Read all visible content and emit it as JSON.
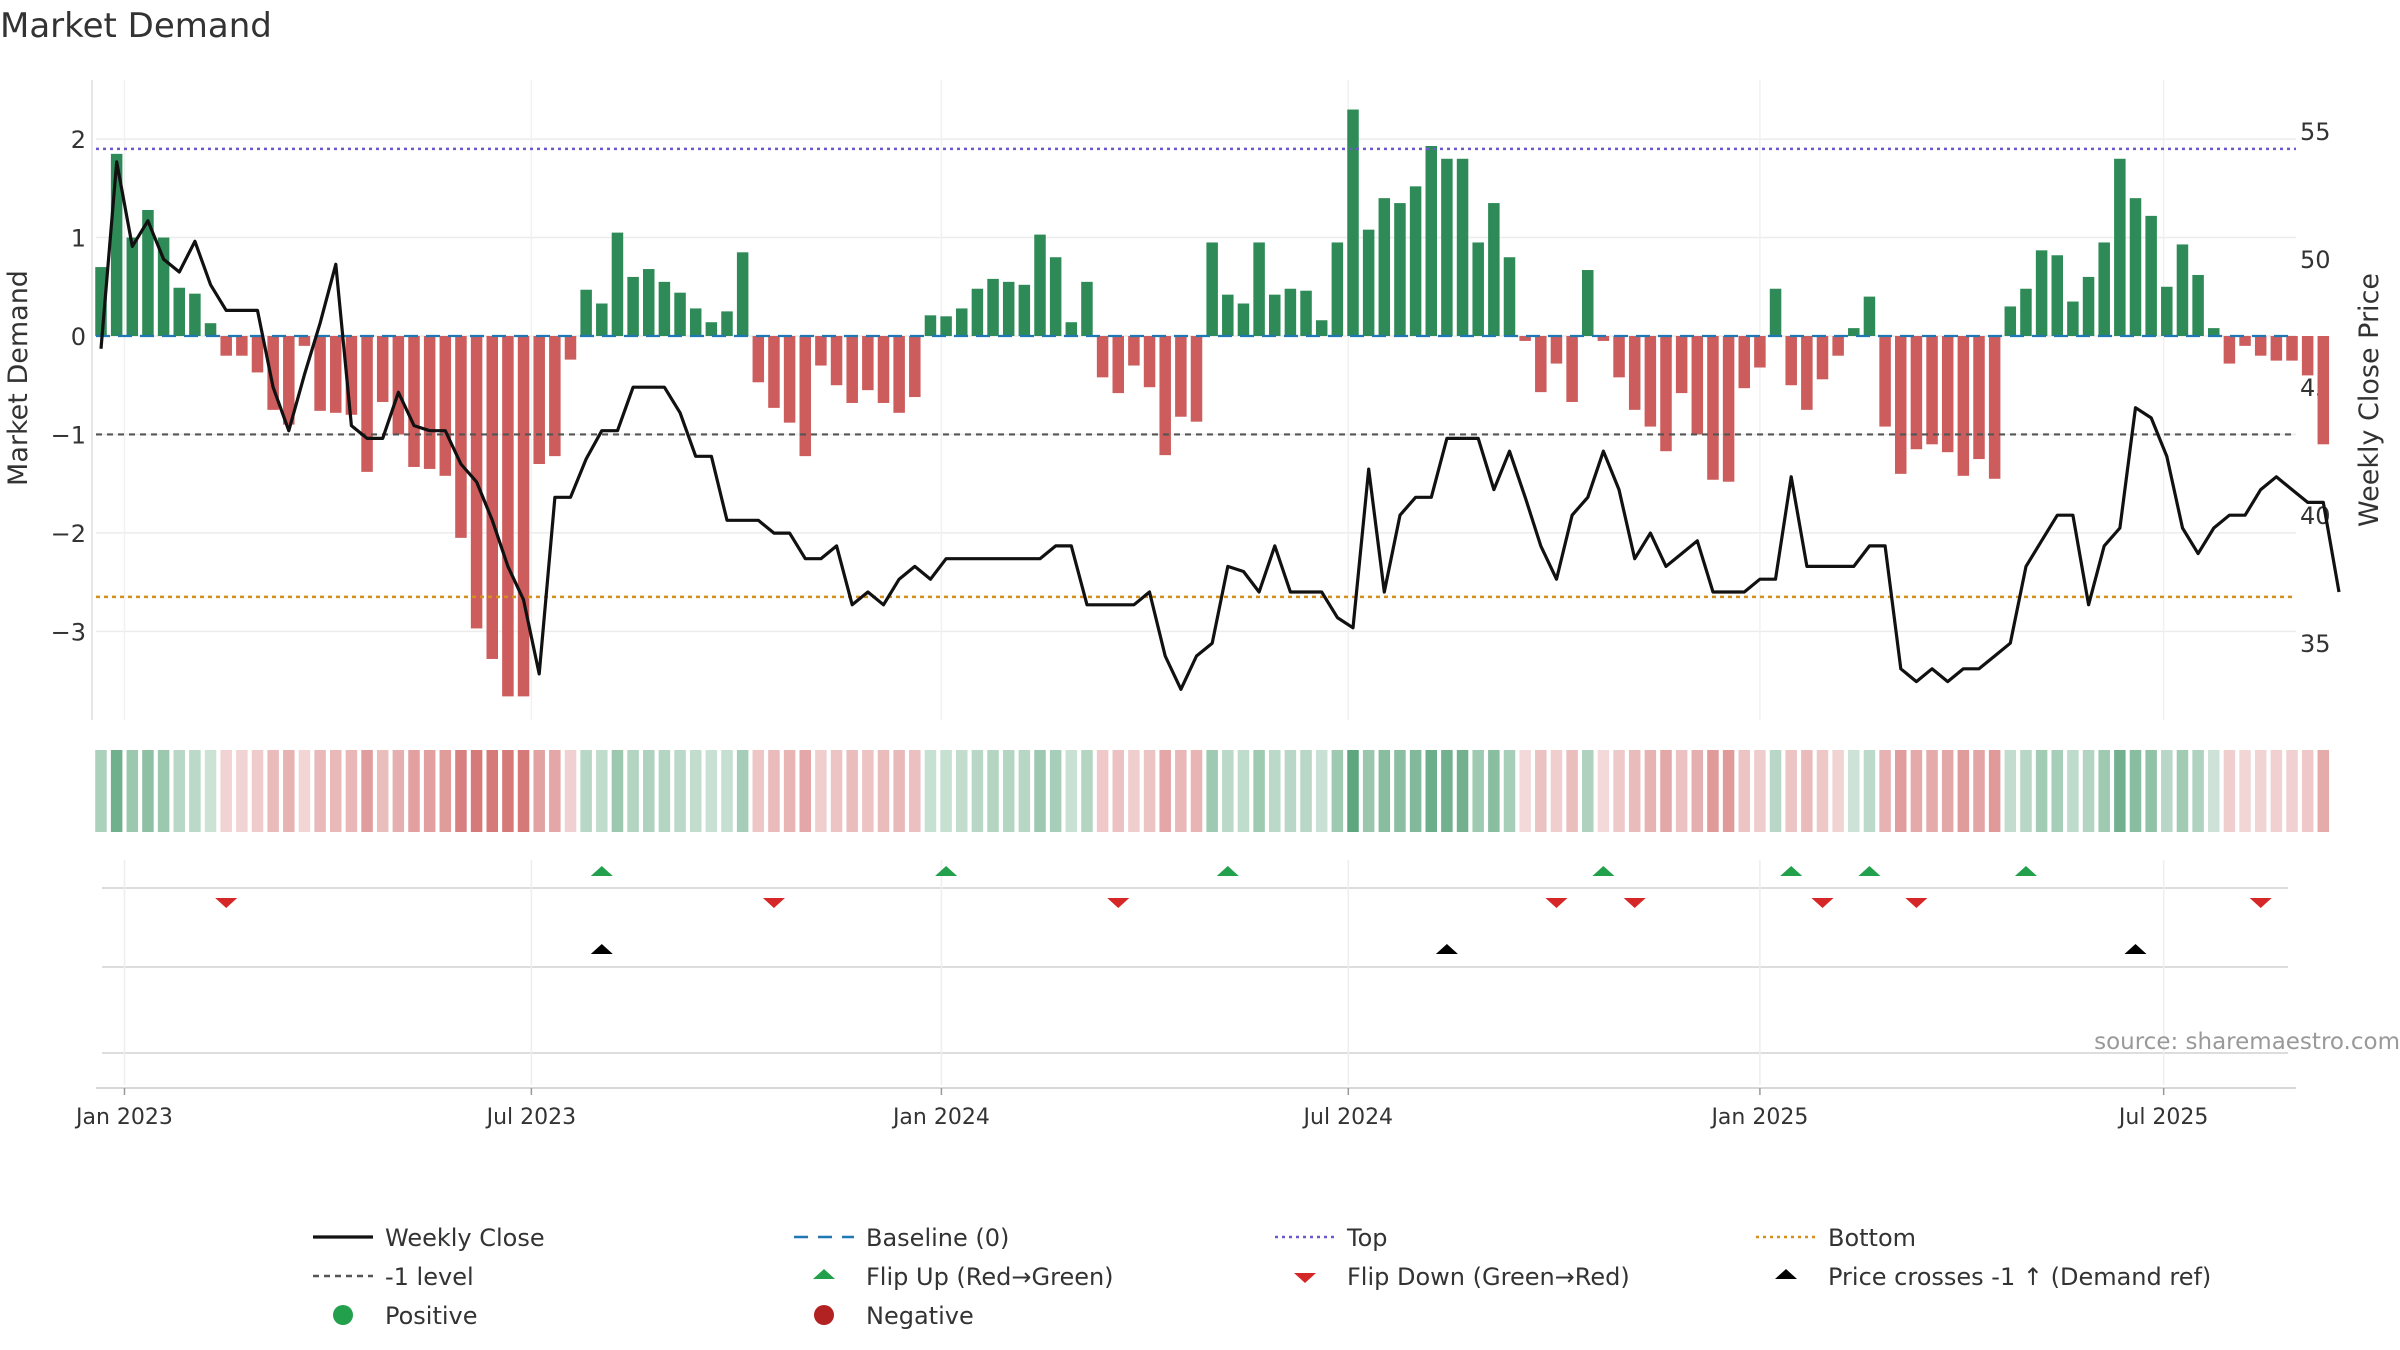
{
  "chart_data": {
    "type": "bar",
    "title": "Market Demand",
    "ylabel_left": "Market Demand",
    "ylabel_right": "Weekly Close Price",
    "ylim_left": [
      -3.9,
      2.6
    ],
    "ylim_right": [
      32,
      57
    ],
    "yticks_left": [
      -3,
      -2,
      -1,
      0,
      1,
      2
    ],
    "yticks_left_labels": [
      "−3",
      "−2",
      "−1",
      "0",
      "1",
      "2"
    ],
    "yticks_right": [
      35,
      40,
      45,
      50,
      55
    ],
    "yticks_right_labels": [
      "35",
      "40",
      "45",
      "50",
      "55"
    ],
    "xticks": [
      {
        "label": "Jan 2023",
        "week": 1.5
      },
      {
        "label": "Jul 2023",
        "week": 27.5
      },
      {
        "label": "Jan 2024",
        "week": 53.7
      },
      {
        "label": "Jul 2024",
        "week": 79.7
      },
      {
        "label": "Jan 2025",
        "week": 106
      },
      {
        "label": "Jul 2025",
        "week": 131.8
      }
    ],
    "weeks": 144,
    "reference_lines": {
      "baseline": 0,
      "top": 1.9,
      "minus_one": -1,
      "bottom": -2.65
    },
    "demand": [
      0.7,
      1.85,
      1.0,
      1.28,
      1.0,
      0.49,
      0.43,
      0.13,
      -0.2,
      -0.2,
      -0.37,
      -0.75,
      -0.9,
      -0.1,
      -0.76,
      -0.78,
      -0.8,
      -1.38,
      -0.67,
      -1.0,
      -1.33,
      -1.35,
      -1.42,
      -2.05,
      -2.97,
      -3.28,
      -3.66,
      -3.66,
      -1.3,
      -1.22,
      -0.24,
      0.47,
      0.33,
      1.05,
      0.6,
      0.68,
      0.55,
      0.44,
      0.28,
      0.14,
      0.25,
      0.85,
      -0.47,
      -0.73,
      -0.88,
      -1.22,
      -0.3,
      -0.5,
      -0.68,
      -0.55,
      -0.68,
      -0.78,
      -0.62,
      0.21,
      0.2,
      0.28,
      0.48,
      0.58,
      0.55,
      0.52,
      1.03,
      0.8,
      0.14,
      0.55,
      -0.42,
      -0.58,
      -0.3,
      -0.52,
      -1.21,
      -0.82,
      -0.87,
      0.95,
      0.42,
      0.33,
      0.95,
      0.42,
      0.48,
      0.46,
      0.16,
      0.95,
      2.3,
      1.08,
      1.4,
      1.35,
      1.52,
      1.93,
      1.8,
      1.8,
      0.95,
      1.35,
      0.8,
      -0.05,
      -0.57,
      -0.28,
      -0.67,
      0.67,
      -0.05,
      -0.42,
      -0.75,
      -0.92,
      -1.17,
      -0.58,
      -1.0,
      -1.46,
      -1.48,
      -0.53,
      -0.32,
      0.48,
      -0.5,
      -0.75,
      -0.44,
      -0.2,
      0.08,
      0.4,
      -0.92,
      -1.4,
      -1.15,
      -1.1,
      -1.18,
      -1.42,
      -1.25,
      -1.45,
      0.3,
      0.48,
      0.87,
      0.82,
      0.35,
      0.6,
      0.95,
      1.8,
      1.4,
      1.22,
      0.5,
      0.93,
      0.62,
      0.08,
      -0.28,
      -0.1,
      -0.2,
      -0.25,
      -0.25,
      -0.4,
      -1.1
    ],
    "close": [
      46.5,
      53.8,
      50.5,
      51.5,
      50.0,
      49.5,
      50.7,
      49.0,
      48.0,
      48.0,
      48.0,
      45.0,
      43.3,
      45.5,
      47.5,
      49.8,
      43.5,
      43.0,
      43.0,
      44.8,
      43.5,
      43.3,
      43.3,
      42.0,
      41.3,
      39.8,
      38.0,
      36.7,
      33.8,
      40.7,
      40.7,
      42.2,
      43.3,
      43.3,
      45.0,
      45.0,
      45.0,
      44.0,
      42.3,
      42.3,
      39.8,
      39.8,
      39.8,
      39.3,
      39.3,
      38.3,
      38.3,
      38.8,
      36.5,
      37.0,
      36.5,
      37.5,
      38.0,
      37.5,
      38.3,
      38.3,
      38.3,
      38.3,
      38.3,
      38.3,
      38.3,
      38.8,
      38.8,
      36.5,
      36.5,
      36.5,
      36.5,
      37.0,
      34.5,
      33.2,
      34.5,
      35.0,
      38.0,
      37.8,
      37.0,
      38.8,
      37.0,
      37.0,
      37.0,
      36.0,
      35.6,
      41.8,
      37.0,
      40.0,
      40.7,
      40.7,
      43.0,
      43.0,
      43.0,
      41.0,
      42.5,
      40.7,
      38.8,
      37.5,
      40.0,
      40.7,
      42.5,
      41.0,
      38.3,
      39.3,
      38.0,
      38.5,
      39.0,
      37.0,
      37.0,
      37.0,
      37.5,
      37.5,
      41.5,
      38.0,
      38.0,
      38.0,
      38.0,
      38.8,
      38.8,
      34.0,
      33.5,
      34.0,
      33.5,
      34.0,
      34.0,
      34.5,
      35.0,
      38.0,
      39.0,
      40.0,
      40.0,
      36.5,
      38.8,
      39.5,
      44.2,
      43.8,
      42.3,
      39.5,
      38.5,
      39.5,
      40.0,
      40.0,
      41.0,
      41.5,
      41.0,
      40.5,
      40.5,
      37.0
    ],
    "flip_up_weeks": [
      32,
      54,
      72,
      96,
      108,
      113,
      123
    ],
    "flip_down_weeks": [
      8,
      43,
      65,
      93,
      98,
      110,
      116,
      138
    ],
    "price_cross_weeks": [
      32,
      86,
      130
    ],
    "heatmap_label": "",
    "source_text": "source: sharemaestro.com",
    "legend": [
      {
        "label": "Weekly Close",
        "symbol": "line",
        "color": "#111111"
      },
      {
        "label": "Baseline (0)",
        "symbol": "dashed",
        "color": "#1f77b4"
      },
      {
        "label": "Top",
        "symbol": "dotted",
        "color": "#6a5acd"
      },
      {
        "label": "Bottom",
        "symbol": "dotted",
        "color": "#d4901a"
      },
      {
        "label": "-1 level",
        "symbol": "dashed",
        "color": "#555555"
      },
      {
        "label": "Flip Up (Red→Green)",
        "symbol": "tri-up",
        "color": "#22a04b"
      },
      {
        "label": "Flip Down (Green→Red)",
        "symbol": "tri-down",
        "color": "#d62728"
      },
      {
        "label": "Price crosses -1 ↑ (Demand ref)",
        "symbol": "tri-up",
        "color": "#000000"
      },
      {
        "label": "Positive",
        "symbol": "dot",
        "color": "#22a04b"
      },
      {
        "label": "Negative",
        "symbol": "dot",
        "color": "#b22222"
      }
    ],
    "colors": {
      "positive_bar": "#2e8b57",
      "negative_bar": "#cd5c5c",
      "close_line": "#111111",
      "baseline": "#1f77b4",
      "top": "#6a5acd",
      "bottom": "#d4901a",
      "minus_one": "#555555",
      "flip_up": "#22a04b",
      "flip_down": "#d62728",
      "cross": "#000000"
    }
  }
}
